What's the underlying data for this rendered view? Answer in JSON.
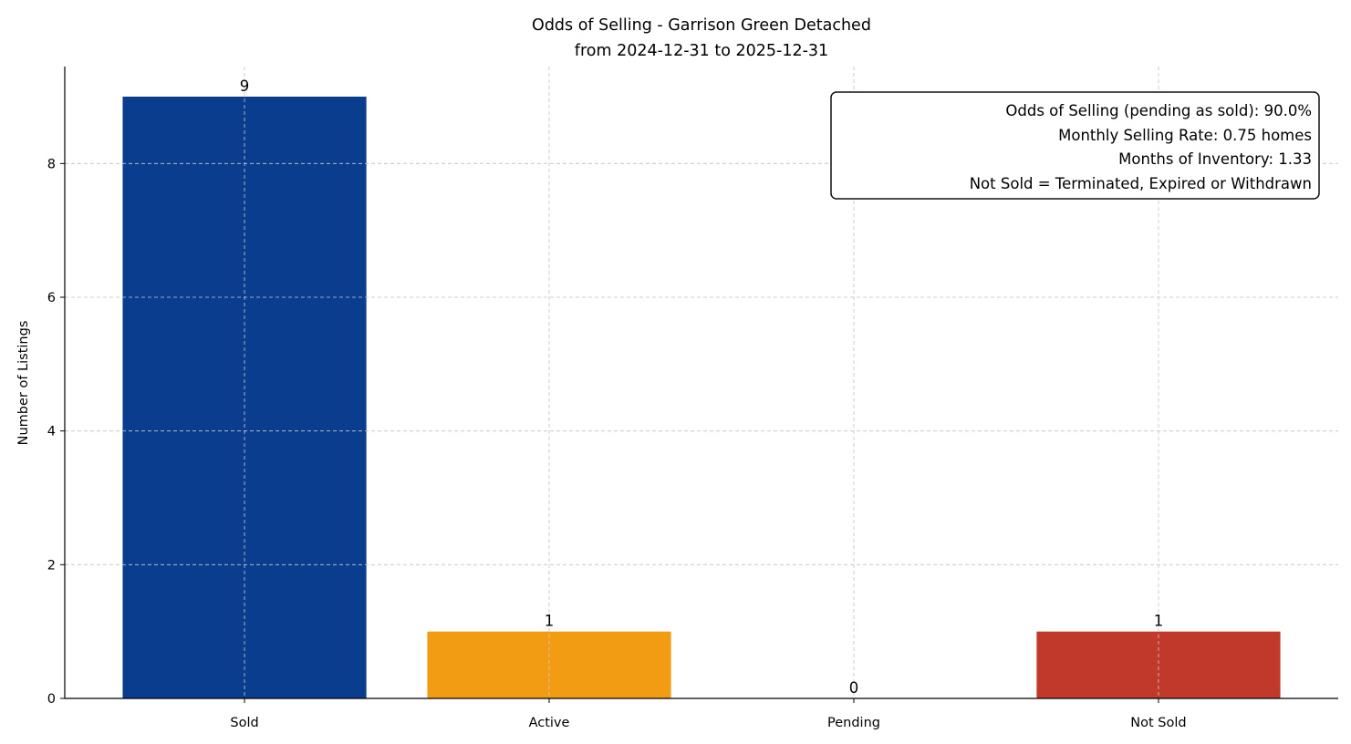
{
  "chart_data": {
    "type": "bar",
    "title": "Odds of Selling - Garrison Green Detached",
    "subtitle": "from 2024-12-31 to 2025-12-31",
    "xlabel": "",
    "ylabel": "Number of Listings",
    "categories": [
      "Sold",
      "Active",
      "Pending",
      "Not Sold"
    ],
    "values": [
      9,
      1,
      0,
      1
    ],
    "data_labels": [
      "9",
      "1",
      "0",
      "1"
    ],
    "colors": [
      "#0b3d8f",
      "#f29c13",
      "#2ca02c",
      "#c0392b"
    ],
    "ylim": [
      0,
      9.45
    ],
    "yticks": [
      0,
      2,
      4,
      6,
      8
    ],
    "grid": true,
    "annotation": {
      "placement": "top-right",
      "lines": [
        "Odds of Selling (pending as sold): 90.0%",
        "Monthly Selling Rate: 0.75 homes",
        "Months of Inventory: 1.33",
        "Not Sold = Terminated, Expired or Withdrawn"
      ]
    }
  }
}
